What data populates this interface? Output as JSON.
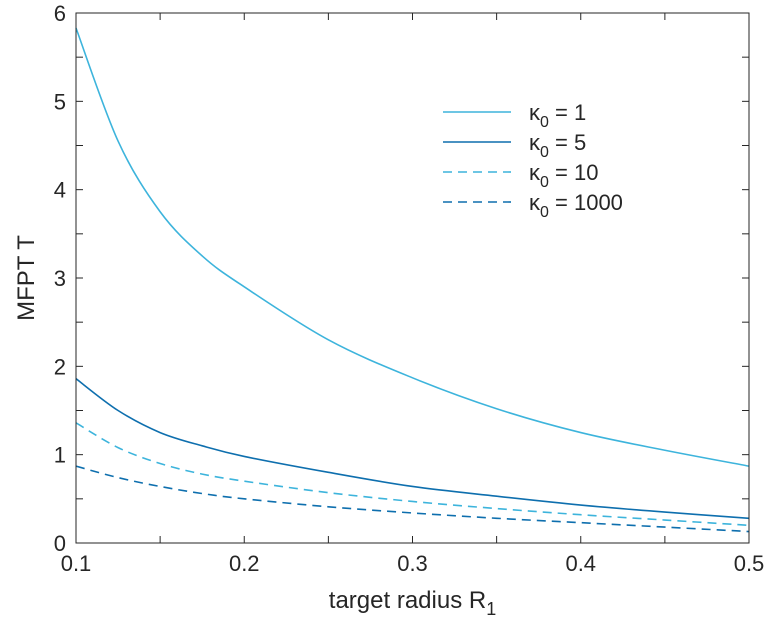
{
  "chart_data": {
    "type": "line",
    "xlabel": "target radius R",
    "xlabel_sub": "1",
    "ylabel": "MFPT T",
    "xlim": [
      0.1,
      0.5
    ],
    "ylim": [
      0,
      6
    ],
    "xticks": [
      0.1,
      0.2,
      0.3,
      0.4,
      0.5
    ],
    "xtick_labels": [
      "0.1",
      "0.2",
      "0.3",
      "0.4",
      "0.5"
    ],
    "yticks": [
      0,
      1,
      2,
      3,
      4,
      5,
      6
    ],
    "ytick_labels": [
      "0",
      "1",
      "2",
      "3",
      "4",
      "5",
      "6"
    ],
    "grid": false,
    "legend_position": "top-right",
    "series": [
      {
        "name": "κ0 = 1",
        "name_main": "κ",
        "name_sub": "0",
        "name_rest": " = 1",
        "color": "#3db4dc",
        "dash": "solid",
        "x": [
          0.1,
          0.125,
          0.15,
          0.175,
          0.2,
          0.25,
          0.3,
          0.35,
          0.4,
          0.45,
          0.5
        ],
        "y": [
          5.83,
          4.55,
          3.75,
          3.25,
          2.9,
          2.3,
          1.87,
          1.52,
          1.25,
          1.05,
          0.87
        ]
      },
      {
        "name": "κ0 = 5",
        "name_main": "κ",
        "name_sub": "0",
        "name_rest": " = 5",
        "color": "#0e6fae",
        "dash": "solid",
        "x": [
          0.1,
          0.125,
          0.15,
          0.175,
          0.2,
          0.25,
          0.3,
          0.35,
          0.4,
          0.45,
          0.5
        ],
        "y": [
          1.86,
          1.5,
          1.25,
          1.1,
          0.98,
          0.8,
          0.64,
          0.53,
          0.43,
          0.35,
          0.28
        ]
      },
      {
        "name": "κ0 = 10",
        "name_main": "κ",
        "name_sub": "0",
        "name_rest": " = 10",
        "color": "#3db4dc",
        "dash": "dashed",
        "x": [
          0.1,
          0.125,
          0.15,
          0.175,
          0.2,
          0.25,
          0.3,
          0.35,
          0.4,
          0.45,
          0.5
        ],
        "y": [
          1.36,
          1.08,
          0.9,
          0.78,
          0.7,
          0.57,
          0.47,
          0.39,
          0.32,
          0.26,
          0.2
        ]
      },
      {
        "name": "κ0 = 1000",
        "name_main": "κ",
        "name_sub": "0",
        "name_rest": " = 1000",
        "color": "#0e6fae",
        "dash": "dashed",
        "x": [
          0.1,
          0.125,
          0.15,
          0.175,
          0.2,
          0.25,
          0.3,
          0.35,
          0.4,
          0.45,
          0.5
        ],
        "y": [
          0.87,
          0.74,
          0.64,
          0.56,
          0.5,
          0.41,
          0.34,
          0.28,
          0.23,
          0.18,
          0.13
        ]
      }
    ]
  }
}
